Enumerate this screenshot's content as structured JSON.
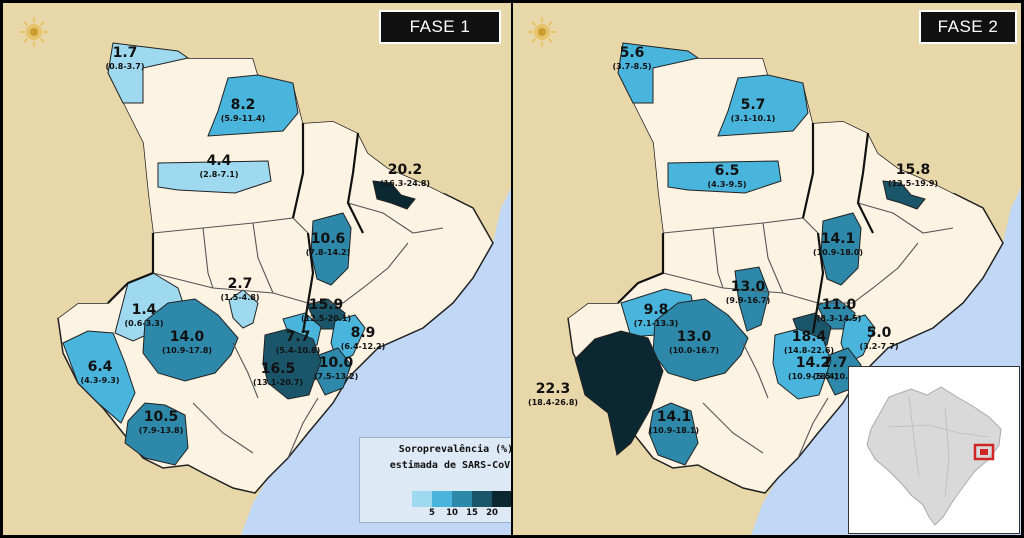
{
  "colors": {
    "sea": "#c1d7f6",
    "land": "#e8d7a8",
    "region_bg": "#fcf3e3",
    "border": "#333333",
    "class_0_5": "#9ed9ef",
    "class_5_10": "#49b5dc",
    "class_10_15": "#2d88aa",
    "class_15_20": "#1b5569",
    "class_20_plus": "#0b2832",
    "highlight": "#d02626"
  },
  "legend": {
    "title_line1": "Soroprevalência (%)",
    "title_line2": "estimada de SARS-CoV-2",
    "ticks": [
      "5",
      "10",
      "15",
      "20"
    ]
  },
  "phases": [
    {
      "title": "FASE 1",
      "regions": [
        {
          "value": "1.7",
          "ci": "(0.8-3.7)"
        },
        {
          "value": "8.2",
          "ci": "(5.9-11.4)"
        },
        {
          "value": "4.4",
          "ci": "(2.8-7.1)"
        },
        {
          "value": "20.2",
          "ci": "(16.3-24.8)"
        },
        {
          "value": "10.6",
          "ci": "(7.8-14.2)"
        },
        {
          "value": "2.7",
          "ci": "(1.5-4.8)"
        },
        {
          "value": "1.4",
          "ci": "(0.6-3.3)"
        },
        {
          "value": "15.9",
          "ci": "(12.5-20.1)"
        },
        {
          "value": "14.0",
          "ci": "(10.9-17.8)"
        },
        {
          "value": "7.7",
          "ci": "(5.4-10.8)"
        },
        {
          "value": "8.9",
          "ci": "(6.4-12.2)"
        },
        {
          "value": "10.0",
          "ci": "(7.5-13.2)"
        },
        {
          "value": "16.5",
          "ci": "(13.1-20.7)"
        },
        {
          "value": "6.4",
          "ci": "(4.3-9.3)"
        },
        {
          "value": "10.5",
          "ci": "(7.9-13.8)"
        }
      ]
    },
    {
      "title": "FASE 2",
      "regions": [
        {
          "value": "5.6",
          "ci": "(3.7-8.5)"
        },
        {
          "value": "5.7",
          "ci": "(3.1-10.1)"
        },
        {
          "value": "6.5",
          "ci": "(4.3-9.5)"
        },
        {
          "value": "15.8",
          "ci": "(12.5-19.9)"
        },
        {
          "value": "14.1",
          "ci": "(10.9-18.0)"
        },
        {
          "value": "13.0",
          "ci": "(9.9-16.7)"
        },
        {
          "value": "9.8",
          "ci": "(7.1-13.3)"
        },
        {
          "value": "11.0",
          "ci": "(8.3-14.5)"
        },
        {
          "value": "13.0",
          "ci": "(10.0-16.7)"
        },
        {
          "value": "18.4",
          "ci": "(14.8-22.6)"
        },
        {
          "value": "5.0",
          "ci": "(3.2-7.7)"
        },
        {
          "value": "14.2",
          "ci": "(10.9-18.4)"
        },
        {
          "value": "7.7",
          "ci": "(5.5-10.7)"
        },
        {
          "value": "22.3",
          "ci": "(18.4-26.8)"
        },
        {
          "value": "14.1",
          "ci": "(10.9-18.1)"
        }
      ]
    }
  ]
}
